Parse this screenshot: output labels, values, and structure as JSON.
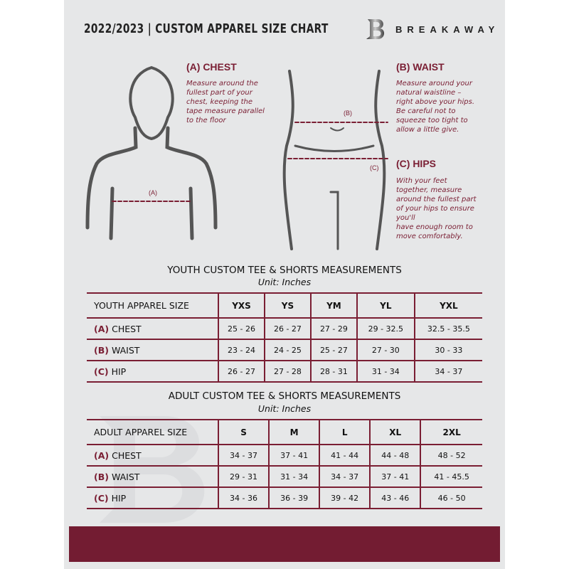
{
  "header": {
    "title": "2022/2023  |  CUSTOM APPAREL SIZE CHART",
    "brand": "BREAKAWAY",
    "logo_letter": "B"
  },
  "chest": {
    "heading": "(A) CHEST",
    "desc": [
      "Measure around the",
      "fullest part of your",
      "chest, keeping the",
      "tape measure parallel",
      "to the floor"
    ],
    "marker": "(A)"
  },
  "waist": {
    "heading": "(B) WAIST",
    "desc": [
      "Measure around your",
      "natural waistline –",
      "right above your hips.",
      "Be careful not to",
      "squeeze too tight to",
      "allow a little give."
    ],
    "marker": "(B)"
  },
  "hips": {
    "heading": "(C) HIPS",
    "desc": [
      "With your feet",
      "together, measure",
      "around the fullest part",
      "of your hips to ensure",
      "you'll",
      "have enough room to",
      "move comfortably."
    ],
    "marker": "(C)"
  },
  "youth": {
    "title": "YOUTH CUSTOM TEE & SHORTS MEASUREMENTS",
    "unit": "Unit: Inches",
    "size_label": "YOUTH APPAREL SIZE",
    "sizes": [
      "YXS",
      "YS",
      "YM",
      "YL",
      "YXL"
    ],
    "rows": [
      {
        "code": "(A)",
        "name": "CHEST",
        "values": [
          "25 - 26",
          "26 - 27",
          "27 - 29",
          "29 - 32.5",
          "32.5 - 35.5"
        ]
      },
      {
        "code": "(B)",
        "name": "WAIST",
        "values": [
          "23 - 24",
          "24 - 25",
          "25 - 27",
          "27 - 30",
          "30 - 33"
        ]
      },
      {
        "code": "(C)",
        "name": "HIP",
        "values": [
          "26 - 27",
          "27 - 28",
          "28 - 31",
          "31 - 34",
          "34 - 37"
        ]
      }
    ]
  },
  "adult": {
    "title": "ADULT CUSTOM TEE & SHORTS MEASUREMENTS",
    "unit": "Unit: Inches",
    "size_label": "ADULT APPAREL SIZE",
    "sizes": [
      "S",
      "M",
      "L",
      "XL",
      "2XL"
    ],
    "rows": [
      {
        "code": "(A)",
        "name": "CHEST",
        "values": [
          "34 - 37",
          "37 - 41",
          "41 - 44",
          "44 - 48",
          "48 - 52"
        ]
      },
      {
        "code": "(B)",
        "name": "WAIST",
        "values": [
          "29 - 31",
          "31 - 34",
          "34 - 37",
          "37 - 41",
          "41 - 45.5"
        ]
      },
      {
        "code": "(C)",
        "name": "HIP",
        "values": [
          "34 - 36",
          "36 - 39",
          "39 - 42",
          "43 - 46",
          "46 - 50"
        ]
      }
    ]
  },
  "colors": {
    "accent": "#7a1e33",
    "footer": "#731c32",
    "background": "#e6e7e8"
  }
}
